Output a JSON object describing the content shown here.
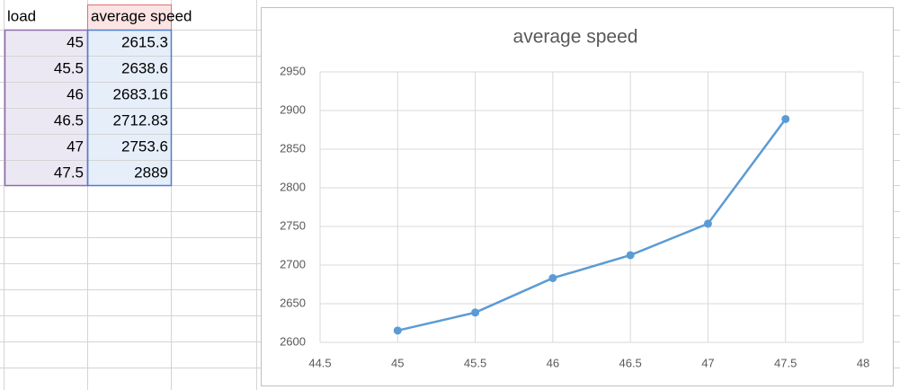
{
  "sheet": {
    "headers": [
      "load",
      "average speed"
    ],
    "rows": [
      [
        45,
        2615.3
      ],
      [
        45.5,
        2638.6
      ],
      [
        46,
        2683.16
      ],
      [
        46.5,
        2712.83
      ],
      [
        47,
        2753.6
      ],
      [
        47.5,
        2889
      ]
    ]
  },
  "chart_data": {
    "type": "scatter",
    "title": "average speed",
    "x": [
      45,
      45.5,
      46,
      46.5,
      47,
      47.5
    ],
    "values": [
      2615.3,
      2638.6,
      2683.16,
      2712.83,
      2753.6,
      2889
    ],
    "color": "#5b9bd5",
    "lines": true,
    "grid": true,
    "xlim": [
      44.5,
      48
    ],
    "xticks": [
      44.5,
      45,
      45.5,
      46,
      46.5,
      47,
      47.5,
      48
    ],
    "ylim": [
      2600,
      2950
    ],
    "yticks": [
      2600,
      2650,
      2700,
      2750,
      2800,
      2850,
      2900,
      2950
    ]
  }
}
